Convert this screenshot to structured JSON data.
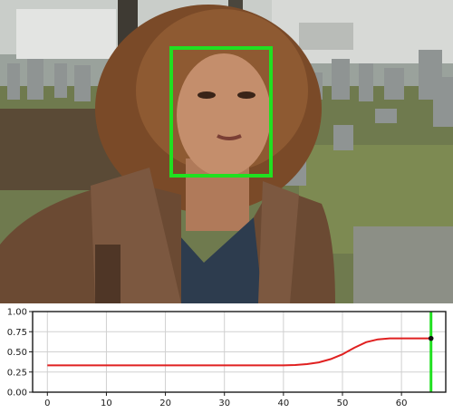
{
  "scene": {
    "image_subject": "young woman with curly auburn hair in brown leather jacket, cemetery background",
    "detection_box_color": "#20e020"
  },
  "chart_data": {
    "type": "line",
    "title": "",
    "xlabel": "",
    "ylabel": "",
    "xlim": [
      -2.5,
      67.5
    ],
    "ylim": [
      0.0,
      1.0
    ],
    "x_ticks": [
      0,
      10,
      20,
      30,
      40,
      50,
      60
    ],
    "y_ticks": [
      0.0,
      0.25,
      0.5,
      0.75,
      1.0
    ],
    "x_tick_labels": [
      "0",
      "10",
      "20",
      "30",
      "40",
      "50",
      "60"
    ],
    "y_tick_labels": [
      "0.00",
      "0.25",
      "0.50",
      "0.75",
      "1.00"
    ],
    "grid": true,
    "series": [
      {
        "color": "#e02020",
        "x": [
          0,
          10,
          20,
          30,
          40,
          42,
          44,
          46,
          48,
          50,
          52,
          54,
          56,
          58,
          60,
          62,
          65
        ],
        "y": [
          0.333,
          0.333,
          0.333,
          0.333,
          0.333,
          0.337,
          0.348,
          0.37,
          0.41,
          0.47,
          0.55,
          0.62,
          0.655,
          0.667,
          0.667,
          0.667,
          0.667
        ]
      }
    ],
    "current_marker": {
      "x": 65,
      "y": 0.667,
      "color": "#111111"
    },
    "current_line": {
      "x": 65,
      "color": "#20e020"
    }
  }
}
